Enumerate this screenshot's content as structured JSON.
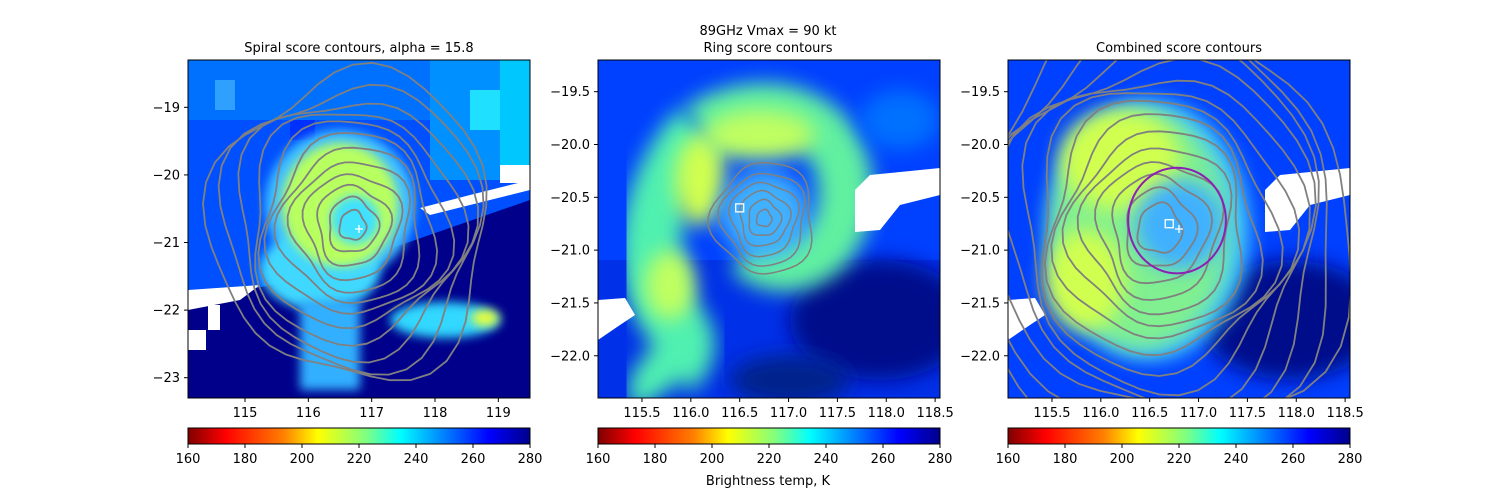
{
  "figure": {
    "suptitle_line1": "89GHz      Vmax = 90 kt",
    "colorbar_label": "Brightness temp, K"
  },
  "colors": {
    "colormap_reversed_jet": [
      "#800000",
      "#ff0000",
      "#ff8000",
      "#ffff00",
      "#80ff80",
      "#00ffff",
      "#0080ff",
      "#0000ff",
      "#00008b"
    ],
    "contour": "#808080",
    "ring_circle": "#8e1fb3",
    "marker": "#ffffff",
    "missing": "#ffffff"
  },
  "chart_data": [
    {
      "type": "heatmap",
      "title": "Spiral score contours, alpha = 15.8",
      "xlim": [
        114.1,
        119.5
      ],
      "ylim": [
        -23.3,
        -18.3
      ],
      "xticks": [
        "115",
        "116",
        "117",
        "118",
        "119"
      ],
      "yticks": [
        "−19",
        "−20",
        "−21",
        "−22",
        "−23"
      ],
      "xtick_values": [
        115,
        116,
        117,
        118,
        119
      ],
      "ytick_values": [
        -19,
        -20,
        -21,
        -22,
        -23
      ],
      "center_marker": {
        "shape": "plus",
        "x": 116.8,
        "y": -20.8
      },
      "colorbar": {
        "vmin": 160,
        "vmax": 280,
        "ticks": [
          "160",
          "180",
          "200",
          "220",
          "240",
          "260",
          "280"
        ]
      },
      "contours": {
        "x": 116.7,
        "y": -20.75,
        "count": 12
      }
    },
    {
      "type": "heatmap",
      "title": "Ring score contours",
      "xlim": [
        115.05,
        118.55
      ],
      "ylim": [
        -22.4,
        -19.2
      ],
      "xticks": [
        "115.5",
        "116.0",
        "116.5",
        "117.0",
        "117.5",
        "118.0",
        "118.5"
      ],
      "yticks": [
        "−19.5",
        "−20.0",
        "−20.5",
        "−21.0",
        "−21.5",
        "−22.0"
      ],
      "xtick_values": [
        115.5,
        116.0,
        116.5,
        117.0,
        117.5,
        118.0,
        118.5
      ],
      "ytick_values": [
        -19.5,
        -20.0,
        -20.5,
        -21.0,
        -21.5,
        -22.0
      ],
      "center_marker": {
        "shape": "square",
        "x": 116.5,
        "y": -20.6
      },
      "colorbar": {
        "vmin": 160,
        "vmax": 280,
        "ticks": [
          "160",
          "180",
          "200",
          "220",
          "240",
          "260",
          "280"
        ]
      },
      "contours": {
        "x": 116.75,
        "y": -20.7,
        "count": 6
      }
    },
    {
      "type": "heatmap",
      "title": "Combined score contours",
      "xlim": [
        115.05,
        118.55
      ],
      "ylim": [
        -22.4,
        -19.2
      ],
      "xticks": [
        "115.5",
        "116.0",
        "116.5",
        "117.0",
        "117.5",
        "118.0",
        "118.5"
      ],
      "yticks": [
        "−19.5",
        "−20.0",
        "−20.5",
        "−21.0",
        "−21.5",
        "−22.0"
      ],
      "xtick_values": [
        115.5,
        116.0,
        116.5,
        117.0,
        117.5,
        118.0,
        118.5
      ],
      "ytick_values": [
        -19.5,
        -20.0,
        -20.5,
        -21.0,
        -21.5,
        -22.0
      ],
      "center_marker": {
        "shape": "square",
        "x": 116.7,
        "y": -20.75
      },
      "plus_marker": {
        "x": 116.8,
        "y": -20.8
      },
      "ring": {
        "cx": 116.78,
        "cy": -20.72,
        "r": 0.5
      },
      "colorbar": {
        "vmin": 160,
        "vmax": 280,
        "ticks": [
          "160",
          "180",
          "200",
          "220",
          "240",
          "260",
          "280"
        ]
      },
      "contours": {
        "x": 116.6,
        "y": -20.8,
        "count": 14
      }
    }
  ]
}
